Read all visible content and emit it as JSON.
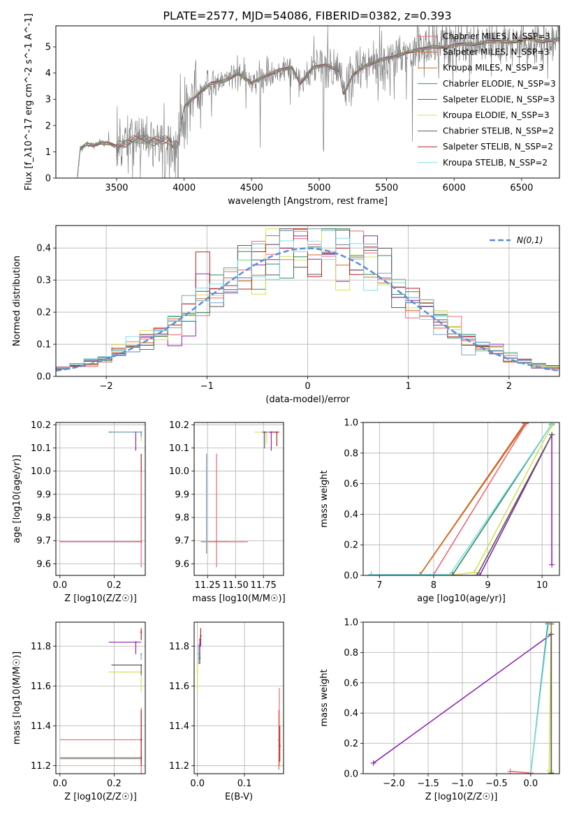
{
  "figure_title": "PLATE=2577, MJD=54086, FIBERID=0382, z=0.393",
  "model_colors": [
    "#ee6677",
    "#d2691e",
    "#2e8b57",
    "#8e24aa",
    "#d4e157",
    "#5a5a5a",
    "#b22222",
    "#80deea",
    "#7aa6c2"
  ],
  "chart_data": [
    {
      "id": "spectrum",
      "type": "line",
      "xlabel": "wavelength [Angstrom, rest frame]",
      "ylabel": "Flux [f_λ10^-17 erg cm^-2 s^-1 A^-1]",
      "xlim": [
        3050,
        6780
      ],
      "ylim": [
        0,
        5.8
      ],
      "xticks": [
        3500,
        4000,
        4500,
        5000,
        5500,
        6000,
        6500
      ],
      "yticks": [
        0,
        1,
        2,
        3,
        4,
        5
      ],
      "legend_position": "upper right",
      "data_color": "#808080",
      "data_keypoints": {
        "x": [
          3210,
          3230,
          3280,
          3330,
          3380,
          3450,
          3500,
          3560,
          3620,
          3680,
          3750,
          3820,
          3880,
          3920,
          3960,
          4000,
          4100,
          4200,
          4300,
          4400,
          4500,
          4600,
          4700,
          4800,
          4860,
          4950,
          5050,
          5150,
          5180,
          5250,
          5350,
          5450,
          5550,
          5650,
          5750,
          5850,
          5950,
          6050,
          6150,
          6250,
          6350,
          6450,
          6550,
          6650,
          6780
        ],
        "y": [
          0,
          1.1,
          1.3,
          1.25,
          1.35,
          1.3,
          1.2,
          1.35,
          1.45,
          1.5,
          1.4,
          1.45,
          1.5,
          1.2,
          1.3,
          2.7,
          3.2,
          3.6,
          3.7,
          4.0,
          3.6,
          3.9,
          4.1,
          4.2,
          3.6,
          4.2,
          4.3,
          4.1,
          3.2,
          3.9,
          4.3,
          4.5,
          4.6,
          4.8,
          4.9,
          5.0,
          5.0,
          5.1,
          5.1,
          5.2,
          5.2,
          5.2,
          5.3,
          5.2,
          5.3
        ]
      },
      "series": [
        {
          "name": "Chabrier MILES, N_SSP=3",
          "color_index": 0
        },
        {
          "name": "Salpeter MILES, N_SSP=3",
          "color_index": 1
        },
        {
          "name": "Kroupa MILES, N_SSP=3",
          "color_index": 1
        },
        {
          "name": "Chabrier ELODIE, N_SSP=3",
          "color_index": 2
        },
        {
          "name": "Salpeter ELODIE, N_SSP=3",
          "color_index": 3
        },
        {
          "name": "Kroupa ELODIE, N_SSP=3",
          "color_index": 4
        },
        {
          "name": "Chabrier STELIB, N_SSP=2",
          "color_index": 5
        },
        {
          "name": "Salpeter STELIB, N_SSP=2",
          "color_index": 6
        },
        {
          "name": "Kroupa STELIB, N_SSP=2",
          "color_index": 7
        }
      ]
    },
    {
      "id": "residuals",
      "type": "line",
      "xlabel": "(data-model)/error",
      "ylabel": "Normed distribution",
      "xlim": [
        -2.5,
        2.5
      ],
      "ylim": [
        0,
        0.47
      ],
      "xticks": [
        -2,
        -1,
        0,
        1,
        2
      ],
      "yticks": [
        0.0,
        0.1,
        0.2,
        0.3,
        0.4
      ],
      "grid": true,
      "legend_position": "upper right",
      "reference": {
        "name": "N(0,1)",
        "color": "#5b8fd6",
        "mu": 0,
        "sigma": 1
      }
    },
    {
      "id": "age-vs-Z",
      "type": "scatter",
      "xlabel": "Z [log10(Z/Z☉)]",
      "ylabel": "age [log10(age/yr)]",
      "xlim": [
        -0.015,
        0.315
      ],
      "ylim": [
        9.55,
        10.21
      ],
      "xticks": [
        0.0,
        0.2
      ],
      "yticks": [
        9.6,
        9.7,
        9.8,
        9.9,
        10.0,
        10.1,
        10.2
      ],
      "grid": true,
      "points": [
        {
          "x": 0.3,
          "y": 9.695,
          "xerr": [
            0.3,
            0.0
          ],
          "yerr": [
            0.0,
            0.0
          ],
          "c": 1
        },
        {
          "x": 0.3,
          "y": 9.695,
          "xerr": [
            0.3,
            0.0
          ],
          "yerr": [
            0.0,
            0.38
          ],
          "c": 6
        },
        {
          "x": 0.3,
          "y": 9.695,
          "xerr": [
            0.3,
            0.0
          ],
          "yerr": [
            0.11,
            0.3
          ],
          "c": 0
        },
        {
          "x": 0.28,
          "y": 10.168,
          "xerr": [
            0.1,
            0.02
          ],
          "yerr": [
            0.08,
            0.0
          ],
          "c": 3
        },
        {
          "x": 0.3,
          "y": 10.168,
          "xerr": [
            0.12,
            0.0
          ],
          "yerr": [
            0.04,
            0.0
          ],
          "c": 4
        },
        {
          "x": 0.3,
          "y": 10.168,
          "xerr": [
            0.12,
            0.0
          ],
          "yerr": [
            0.02,
            0.0
          ],
          "c": 2
        },
        {
          "x": 0.3,
          "y": 10.168,
          "xerr": [
            0.11,
            0.0
          ],
          "yerr": [
            0.02,
            0.0
          ],
          "c": 8
        }
      ]
    },
    {
      "id": "age-vs-mass",
      "type": "scatter",
      "xlabel": "mass [log10(M/M☉)]",
      "ylabel": "",
      "xlim": [
        11.13,
        11.93
      ],
      "ylim": [
        9.55,
        10.21
      ],
      "xticks": [
        11.25,
        11.5,
        11.75
      ],
      "yticks": [
        9.6,
        9.7,
        9.8,
        9.9,
        10.0,
        10.1,
        10.2
      ],
      "grid": true,
      "points": [
        {
          "x": 11.24,
          "y": 9.695,
          "xerr": [
            0.05,
            0.2
          ],
          "yerr": [
            0.05,
            0.38
          ],
          "c": 1
        },
        {
          "x": 11.24,
          "y": 9.695,
          "xerr": [
            0.02,
            0.02
          ],
          "yerr": [
            0.04,
            0.38
          ],
          "c": 8
        },
        {
          "x": 11.33,
          "y": 9.695,
          "xerr": [
            0.04,
            0.28
          ],
          "yerr": [
            0.11,
            0.38
          ],
          "c": 0
        },
        {
          "x": 11.78,
          "y": 10.168,
          "xerr": [
            0.11,
            0.0
          ],
          "yerr": [
            0.05,
            0.0
          ],
          "c": 4
        },
        {
          "x": 11.82,
          "y": 10.168,
          "xerr": [
            0.03,
            0.02
          ],
          "yerr": [
            0.08,
            0.0
          ],
          "c": 3
        },
        {
          "x": 11.87,
          "y": 10.168,
          "xerr": [
            0.04,
            0.02
          ],
          "yerr": [
            0.06,
            0.0
          ],
          "c": 6
        },
        {
          "x": 11.76,
          "y": 10.168,
          "xerr": [
            0.02,
            0.02
          ],
          "yerr": [
            0.07,
            0.0
          ],
          "c": 5
        }
      ]
    },
    {
      "id": "mass-weight-vs-age",
      "type": "line",
      "xlabel": "age [log10(age/yr)]",
      "ylabel": "mass weight",
      "xlim": [
        6.7,
        10.32
      ],
      "ylim": [
        0,
        1.0
      ],
      "xticks": [
        7,
        8,
        9,
        10
      ],
      "yticks": [
        0.0,
        0.2,
        0.4,
        0.6,
        0.8,
        1.0
      ],
      "grid": true,
      "lines": [
        {
          "x": [
            6.85,
            7.75,
            9.7
          ],
          "y": [
            0.005,
            0.005,
            0.995
          ],
          "c": 1
        },
        {
          "x": [
            6.85,
            7.75,
            9.68
          ],
          "y": [
            0.005,
            0.005,
            0.995
          ],
          "c": 1
        },
        {
          "x": [
            6.85,
            8.0,
            9.7
          ],
          "y": [
            0.005,
            0.005,
            0.99
          ],
          "c": 0
        },
        {
          "x": [
            6.85,
            8.35,
            10.18
          ],
          "y": [
            0.005,
            0.005,
            0.99
          ],
          "c": 2
        },
        {
          "x": [
            6.85,
            8.3,
            10.17
          ],
          "y": [
            0.005,
            0.005,
            0.985
          ],
          "c": 7
        },
        {
          "x": [
            8.3,
            8.75,
            10.18
          ],
          "y": [
            0.0,
            0.02,
            0.98
          ],
          "c": 4
        },
        {
          "x": [
            8.35,
            8.85,
            10.18,
            10.18
          ],
          "y": [
            0.0,
            0.0,
            0.92,
            0.07
          ],
          "c": 3
        },
        {
          "x": [
            8.8,
            10.18
          ],
          "y": [
            0.0,
            0.92
          ],
          "c": 5
        }
      ]
    },
    {
      "id": "mass-vs-Z",
      "type": "scatter",
      "xlabel": "Z [log10(Z/Z☉)]",
      "ylabel": "mass [log10(M/M☉)]",
      "xlim": [
        -0.015,
        0.315
      ],
      "ylim": [
        11.16,
        11.92
      ],
      "xticks": [
        0.0,
        0.2
      ],
      "yticks": [
        11.2,
        11.4,
        11.6,
        11.8
      ],
      "grid": true,
      "points": [
        {
          "x": 0.3,
          "y": 11.24,
          "xerr": [
            0.3,
            0.0
          ],
          "yerr": [
            0.0,
            0.0
          ],
          "c": 1
        },
        {
          "x": 0.3,
          "y": 11.235,
          "xerr": [
            0.3,
            0.0
          ],
          "yerr": [
            0.0,
            0.0
          ],
          "c": 8
        },
        {
          "x": 0.3,
          "y": 11.33,
          "xerr": [
            0.3,
            0.0
          ],
          "yerr": [
            0.18,
            0.16
          ],
          "c": 0
        },
        {
          "x": 0.3,
          "y": 11.33,
          "xerr": [
            0.0,
            0.0
          ],
          "yerr": [
            0.13,
            0.15
          ],
          "c": 6
        },
        {
          "x": 0.28,
          "y": 11.82,
          "xerr": [
            0.1,
            0.02
          ],
          "yerr": [
            0.06,
            0.0
          ],
          "c": 3
        },
        {
          "x": 0.3,
          "y": 11.67,
          "xerr": [
            0.12,
            0.0
          ],
          "yerr": [
            0.1,
            0.0
          ],
          "c": 4
        },
        {
          "x": 0.3,
          "y": 11.705,
          "xerr": [
            0.11,
            0.0
          ],
          "yerr": [
            0.05,
            0.0
          ],
          "c": 5
        },
        {
          "x": 0.3,
          "y": 11.87,
          "xerr": [
            0.0,
            0.0
          ],
          "yerr": [
            0.04,
            0.02
          ],
          "c": 6
        },
        {
          "x": 0.3,
          "y": 11.76,
          "xerr": [
            0.0,
            0.0
          ],
          "yerr": [
            0.03,
            0.0
          ],
          "c": 8
        }
      ]
    },
    {
      "id": "mass-vs-EBV",
      "type": "scatter",
      "xlabel": "E(B-V)",
      "ylabel": "",
      "xlim": [
        -0.007,
        0.183
      ],
      "ylim": [
        11.16,
        11.92
      ],
      "xticks": [
        0.0,
        0.1
      ],
      "yticks": [
        11.2,
        11.4,
        11.6,
        11.8
      ],
      "grid": true,
      "points": [
        {
          "x": 0.0,
          "y": 11.67,
          "xerr": [
            0.0,
            0.0
          ],
          "yerr": [
            0.1,
            0.05
          ],
          "c": 4
        },
        {
          "x": 0.003,
          "y": 11.76,
          "xerr": [
            0.0,
            0.0
          ],
          "yerr": [
            0.05,
            0.05
          ],
          "c": 8
        },
        {
          "x": 0.005,
          "y": 11.8,
          "xerr": [
            0.0,
            0.0
          ],
          "yerr": [
            0.05,
            0.04
          ],
          "c": 3
        },
        {
          "x": 0.007,
          "y": 11.85,
          "xerr": [
            0.0,
            0.0
          ],
          "yerr": [
            0.05,
            0.04
          ],
          "c": 6
        },
        {
          "x": 0.005,
          "y": 11.74,
          "xerr": [
            0.0,
            0.0
          ],
          "yerr": [
            0.03,
            0.03
          ],
          "c": 5
        },
        {
          "x": 0.173,
          "y": 11.33,
          "xerr": [
            0.0,
            0.0
          ],
          "yerr": [
            0.15,
            0.15
          ],
          "c": 1
        },
        {
          "x": 0.174,
          "y": 11.33,
          "xerr": [
            0.0,
            0.0
          ],
          "yerr": [
            0.13,
            0.26
          ],
          "c": 0
        },
        {
          "x": 0.175,
          "y": 11.3,
          "xerr": [
            0.0,
            0.0
          ],
          "yerr": [
            0.08,
            0.1
          ],
          "c": 6
        }
      ]
    },
    {
      "id": "mass-weight-vs-Z",
      "type": "line",
      "xlabel": "Z [log10(Z/Z☉)]",
      "ylabel": "mass weight",
      "xlim": [
        -2.45,
        0.42
      ],
      "ylim": [
        0,
        1.0
      ],
      "xticks": [
        -2.0,
        -1.5,
        -1.0,
        -0.5,
        0.0
      ],
      "yticks": [
        0.0,
        0.2,
        0.4,
        0.6,
        0.8,
        1.0
      ],
      "grid": true,
      "lines": [
        {
          "x": [
            -2.3,
            0.3
          ],
          "y": [
            0.07,
            0.92
          ],
          "c": 3
        },
        {
          "x": [
            -0.3,
            0.0
          ],
          "y": [
            0.015,
            0.005
          ],
          "c": 0
        },
        {
          "x": [
            0.0,
            0.25,
            0.3
          ],
          "y": [
            0.0,
            0.99,
            0.99
          ],
          "c": 2
        },
        {
          "x": [
            0.0,
            0.26,
            0.3
          ],
          "y": [
            0.0,
            0.985,
            0.985
          ],
          "c": 7
        },
        {
          "x": [
            0.27,
            0.3,
            0.3
          ],
          "y": [
            0.02,
            0.99,
            0.02
          ],
          "c": 4
        },
        {
          "x": [
            0.3,
            0.3
          ],
          "y": [
            0.0,
            0.99
          ],
          "c": 1
        },
        {
          "x": [
            0.3,
            0.3
          ],
          "y": [
            0.005,
            0.92
          ],
          "c": 5
        }
      ]
    }
  ]
}
